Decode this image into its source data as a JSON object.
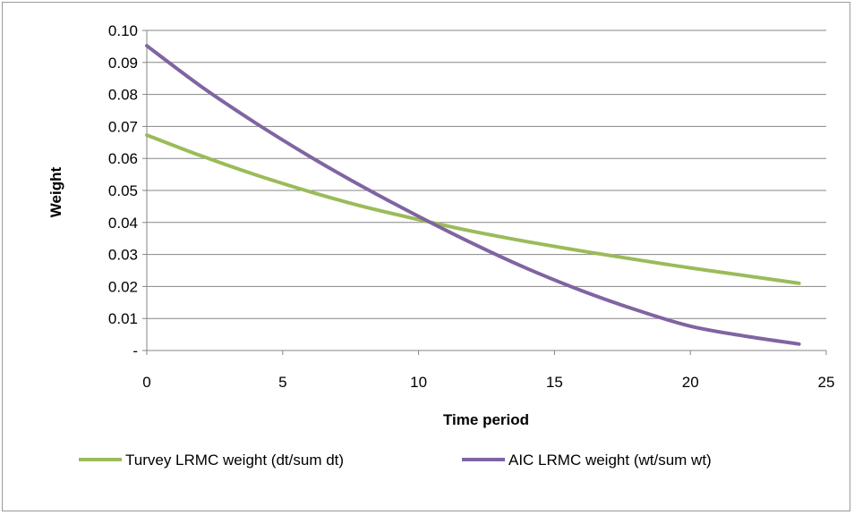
{
  "chart_data": {
    "type": "line",
    "title": "",
    "xlabel": "Time period",
    "ylabel": "Weight",
    "xlim": [
      0,
      25
    ],
    "ylim": [
      0,
      0.1
    ],
    "x_ticks": [
      0,
      5,
      10,
      15,
      20,
      25
    ],
    "y_ticks": [
      0,
      0.01,
      0.02,
      0.03,
      0.04,
      0.05,
      0.06,
      0.07,
      0.08,
      0.09,
      0.1
    ],
    "y_tick_labels": [
      "-",
      "0.01",
      "0.02",
      "0.03",
      "0.04",
      "0.05",
      "0.06",
      "0.07",
      "0.08",
      "0.09",
      "0.10"
    ],
    "grid": "horizontal",
    "legend_position": "bottom",
    "x": [
      0,
      2,
      4,
      6,
      8,
      10,
      12,
      14,
      16,
      18,
      20,
      22,
      24
    ],
    "series": [
      {
        "name": "Turvey LRMC weight (dt/sum dt)",
        "color": "#9bbb59",
        "values": [
          0.0673,
          0.0608,
          0.0549,
          0.0496,
          0.0449,
          0.0409,
          0.0372,
          0.034,
          0.0311,
          0.0284,
          0.0258,
          0.0234,
          0.021
        ]
      },
      {
        "name": "AIC LRMC weight (wt/sum wt)",
        "color": "#8064a2",
        "values": [
          0.0952,
          0.0825,
          0.0711,
          0.0606,
          0.0509,
          0.0419,
          0.0334,
          0.0256,
          0.0187,
          0.0127,
          0.0076,
          0.0045,
          0.002
        ]
      }
    ]
  }
}
